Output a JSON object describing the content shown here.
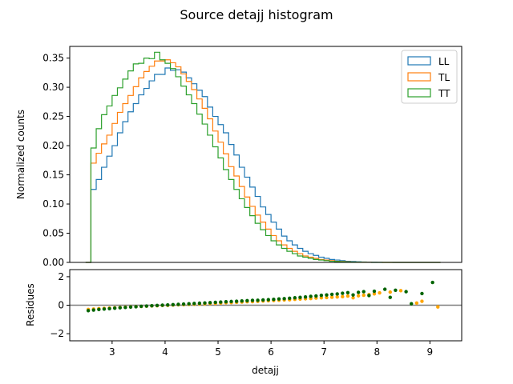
{
  "figure_title": "Source detajj histogram",
  "chart_data": [
    {
      "type": "histogram",
      "title": "",
      "xlabel": "",
      "ylabel": "Normalized counts",
      "xlim": [
        2.2,
        9.6
      ],
      "ylim": [
        0.0,
        0.37
      ],
      "yticks": [
        0.0,
        0.05,
        0.1,
        0.15,
        0.2,
        0.25,
        0.3,
        0.35
      ],
      "ytick_labels": [
        "0.00",
        "0.05",
        "0.10",
        "0.15",
        "0.20",
        "0.25",
        "0.30",
        "0.35"
      ],
      "bin_start": 2.5,
      "bin_width": 0.1,
      "legend_position": "top-right",
      "series": [
        {
          "name": "LL",
          "color": "#1f77b4",
          "values": [
            0.0,
            0.125,
            0.142,
            0.163,
            0.182,
            0.2,
            0.222,
            0.241,
            0.258,
            0.272,
            0.287,
            0.298,
            0.311,
            0.322,
            0.322,
            0.333,
            0.329,
            0.33,
            0.326,
            0.316,
            0.306,
            0.295,
            0.284,
            0.266,
            0.25,
            0.236,
            0.222,
            0.202,
            0.184,
            0.163,
            0.146,
            0.129,
            0.113,
            0.095,
            0.082,
            0.069,
            0.057,
            0.045,
            0.037,
            0.03,
            0.024,
            0.019,
            0.015,
            0.012,
            0.009,
            0.007,
            0.005,
            0.004,
            0.003,
            0.002,
            0.0015,
            0.001,
            0.0008,
            0.0005,
            0.0003,
            0.0002,
            0.0001,
            0.0001,
            0.0,
            0.0,
            0.0,
            0.0,
            0.0,
            0.0,
            0.0,
            0.0,
            0.0
          ]
        },
        {
          "name": "TL",
          "color": "#ff7f0e",
          "values": [
            0.0,
            0.17,
            0.187,
            0.203,
            0.218,
            0.238,
            0.257,
            0.272,
            0.286,
            0.301,
            0.316,
            0.327,
            0.336,
            0.345,
            0.345,
            0.347,
            0.342,
            0.335,
            0.323,
            0.31,
            0.296,
            0.28,
            0.264,
            0.246,
            0.225,
            0.206,
            0.186,
            0.164,
            0.148,
            0.13,
            0.112,
            0.096,
            0.081,
            0.069,
            0.057,
            0.046,
            0.037,
            0.03,
            0.024,
            0.019,
            0.015,
            0.011,
            0.009,
            0.007,
            0.005,
            0.004,
            0.003,
            0.002,
            0.0015,
            0.001,
            0.0007,
            0.0005,
            0.0003,
            0.0002,
            0.0001,
            0.0001,
            0.0,
            0.0,
            0.0,
            0.0,
            0.0,
            0.0,
            0.0,
            0.0,
            0.0,
            0.0,
            0.0
          ]
        },
        {
          "name": "TT",
          "color": "#2ca02c",
          "values": [
            0.0,
            0.196,
            0.229,
            0.253,
            0.268,
            0.286,
            0.299,
            0.314,
            0.328,
            0.34,
            0.341,
            0.35,
            0.349,
            0.36,
            0.347,
            0.341,
            0.332,
            0.318,
            0.302,
            0.287,
            0.272,
            0.254,
            0.237,
            0.218,
            0.198,
            0.179,
            0.159,
            0.142,
            0.125,
            0.109,
            0.094,
            0.08,
            0.067,
            0.056,
            0.046,
            0.037,
            0.03,
            0.024,
            0.019,
            0.015,
            0.011,
            0.009,
            0.007,
            0.005,
            0.004,
            0.003,
            0.002,
            0.0015,
            0.001,
            0.0007,
            0.0005,
            0.0003,
            0.0002,
            0.0001,
            0.0,
            0.0,
            0.0,
            0.0,
            0.0,
            0.0,
            0.0,
            0.0,
            0.0,
            0.0,
            0.0,
            0.0,
            0.0
          ]
        }
      ]
    },
    {
      "type": "scatter",
      "title": "",
      "xlabel": "detajj",
      "ylabel": "Residues",
      "xlim": [
        2.2,
        9.6
      ],
      "ylim": [
        -2.5,
        2.5
      ],
      "xticks": [
        3,
        4,
        5,
        6,
        7,
        8,
        9
      ],
      "xtick_labels": [
        "3",
        "4",
        "5",
        "6",
        "7",
        "8",
        "9"
      ],
      "yticks": [
        -2,
        0,
        2
      ],
      "ytick_labels": [
        "−2",
        "0",
        "2"
      ],
      "reference_line": 0,
      "series": [
        {
          "name": "",
          "color": "#ffa500",
          "x": [
            2.55,
            2.65,
            2.75,
            2.85,
            2.95,
            3.05,
            3.15,
            3.25,
            3.35,
            3.45,
            3.55,
            3.65,
            3.75,
            3.85,
            3.95,
            4.05,
            4.15,
            4.25,
            4.35,
            4.45,
            4.55,
            4.65,
            4.75,
            4.85,
            4.95,
            5.05,
            5.15,
            5.25,
            5.35,
            5.45,
            5.55,
            5.65,
            5.75,
            5.85,
            5.95,
            6.05,
            6.15,
            6.25,
            6.35,
            6.45,
            6.55,
            6.65,
            6.75,
            6.85,
            6.95,
            7.05,
            7.15,
            7.25,
            7.35,
            7.45,
            7.55,
            7.65,
            7.75,
            7.85,
            7.95,
            8.05,
            8.25,
            8.45,
            8.75,
            8.85,
            9.15
          ],
          "y": [
            -0.3,
            -0.27,
            -0.24,
            -0.22,
            -0.2,
            -0.18,
            -0.16,
            -0.14,
            -0.12,
            -0.1,
            -0.09,
            -0.07,
            -0.05,
            -0.04,
            -0.02,
            -0.01,
            0.01,
            0.03,
            0.04,
            0.06,
            0.07,
            0.09,
            0.1,
            0.12,
            0.13,
            0.15,
            0.17,
            0.18,
            0.2,
            0.22,
            0.24,
            0.25,
            0.27,
            0.29,
            0.31,
            0.33,
            0.35,
            0.37,
            0.38,
            0.41,
            0.43,
            0.45,
            0.47,
            0.5,
            0.52,
            0.54,
            0.56,
            0.58,
            0.6,
            0.64,
            0.52,
            0.66,
            0.7,
            0.74,
            0.8,
            0.87,
            0.92,
            1.02,
            0.15,
            0.28,
            -0.12
          ]
        },
        {
          "name": "",
          "color": "#006400",
          "x": [
            2.55,
            2.65,
            2.75,
            2.85,
            2.95,
            3.05,
            3.15,
            3.25,
            3.35,
            3.45,
            3.55,
            3.65,
            3.75,
            3.85,
            3.95,
            4.05,
            4.15,
            4.25,
            4.35,
            4.45,
            4.55,
            4.65,
            4.75,
            4.85,
            4.95,
            5.05,
            5.15,
            5.25,
            5.35,
            5.45,
            5.55,
            5.65,
            5.75,
            5.85,
            5.95,
            6.05,
            6.15,
            6.25,
            6.35,
            6.45,
            6.55,
            6.65,
            6.75,
            6.85,
            6.95,
            7.05,
            7.15,
            7.25,
            7.35,
            7.45,
            7.55,
            7.65,
            7.75,
            7.85,
            7.95,
            8.15,
            8.25,
            8.35,
            8.55,
            8.65,
            8.85,
            9.05
          ],
          "y": [
            -0.38,
            -0.34,
            -0.3,
            -0.27,
            -0.24,
            -0.21,
            -0.18,
            -0.16,
            -0.13,
            -0.11,
            -0.08,
            -0.06,
            -0.04,
            -0.02,
            0.0,
            0.02,
            0.04,
            0.06,
            0.08,
            0.1,
            0.12,
            0.14,
            0.16,
            0.18,
            0.2,
            0.22,
            0.24,
            0.26,
            0.28,
            0.3,
            0.32,
            0.34,
            0.35,
            0.37,
            0.39,
            0.41,
            0.44,
            0.46,
            0.49,
            0.52,
            0.55,
            0.58,
            0.62,
            0.65,
            0.69,
            0.72,
            0.76,
            0.79,
            0.84,
            0.88,
            0.72,
            0.9,
            0.95,
            0.68,
            0.98,
            1.12,
            0.55,
            1.05,
            0.95,
            0.1,
            0.82,
            1.6
          ]
        }
      ]
    }
  ]
}
